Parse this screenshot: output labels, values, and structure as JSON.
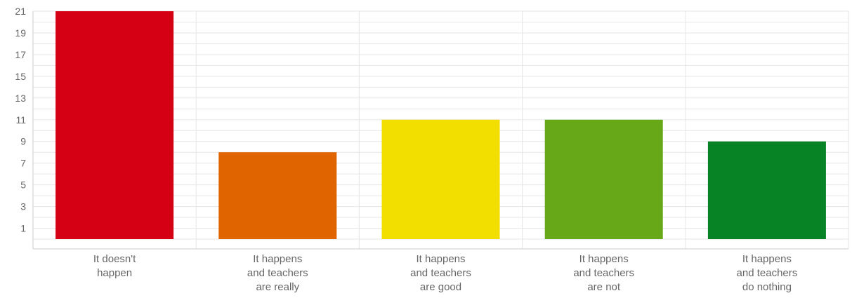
{
  "chart_data": {
    "type": "bar",
    "categories": [
      [
        "It doesn't",
        "happen"
      ],
      [
        "It happens",
        "and teachers",
        "are really"
      ],
      [
        "It happens",
        "and teachers",
        "are good"
      ],
      [
        "It happens",
        "and teachers",
        "are not"
      ],
      [
        "It happens",
        "and teachers",
        "do nothing"
      ]
    ],
    "values": [
      21,
      8,
      11,
      11,
      9
    ],
    "colors": [
      "#d50014",
      "#e06500",
      "#f2df00",
      "#67a819",
      "#078225"
    ],
    "ylim": [
      0,
      21
    ],
    "yticks": [
      1,
      3,
      5,
      7,
      9,
      11,
      13,
      15,
      17,
      19,
      21
    ],
    "grid": true,
    "title": "",
    "xlabel": "",
    "ylabel": ""
  }
}
